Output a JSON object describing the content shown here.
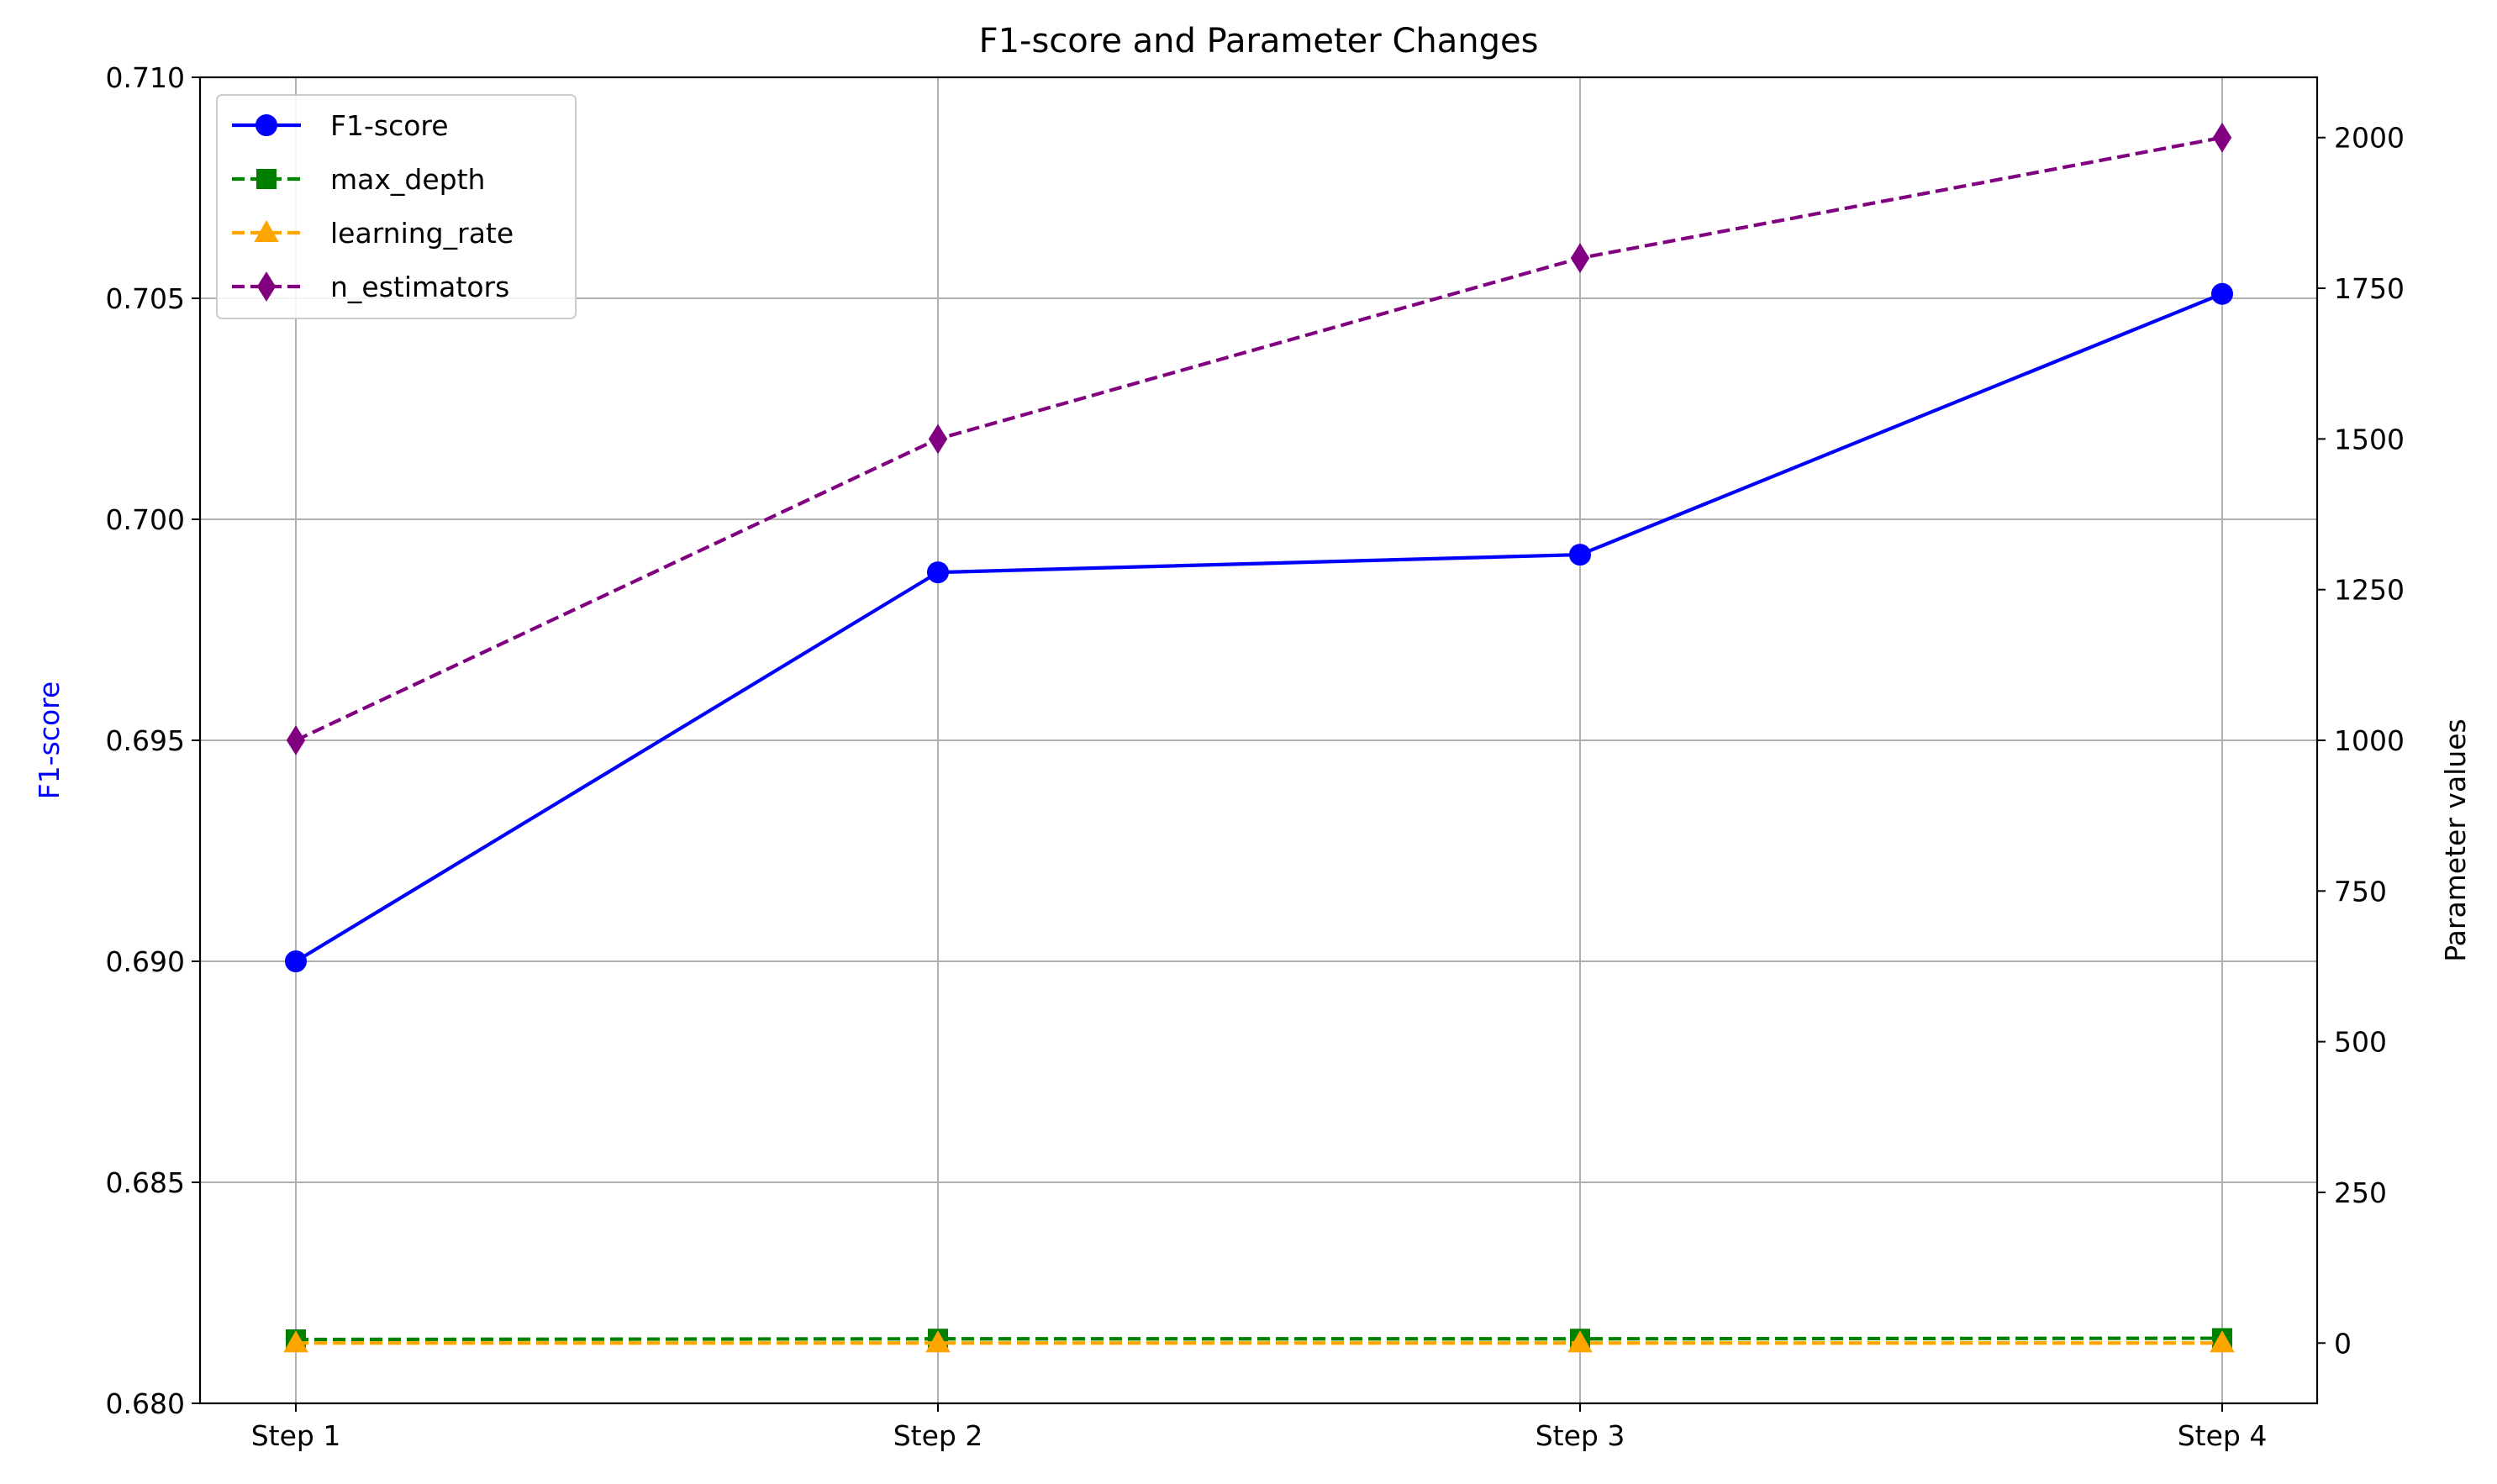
{
  "chart_data": {
    "type": "line",
    "title": "F1-score and Parameter Changes",
    "categories": [
      "Step 1",
      "Step 2",
      "Step 3",
      "Step 4"
    ],
    "y_left": {
      "label": "F1-score",
      "label_color": "#0000ff",
      "range": [
        0.68,
        0.71
      ],
      "ticks": [
        "0.680",
        "0.685",
        "0.690",
        "0.695",
        "0.700",
        "0.705",
        "0.710"
      ]
    },
    "y_right": {
      "label": "Parameter values",
      "range": [
        -100,
        2100
      ],
      "ticks": [
        "0",
        "250",
        "500",
        "750",
        "1000",
        "1250",
        "1500",
        "1750",
        "2000"
      ]
    },
    "grid": true,
    "legend_position": "top-left",
    "series": [
      {
        "name": "F1-score",
        "axis": "left",
        "values": [
          0.69,
          0.6988,
          0.6992,
          0.7051
        ],
        "color": "#0000ff",
        "dash": "solid",
        "marker": "circle"
      },
      {
        "name": "max_depth",
        "axis": "right",
        "values": [
          6,
          7,
          7,
          8
        ],
        "color": "#008000",
        "dash": "dashed",
        "marker": "square"
      },
      {
        "name": "learning_rate",
        "axis": "right",
        "values": [
          0.05,
          0.03,
          0.02,
          0.01
        ],
        "color": "#ffa500",
        "dash": "dashed",
        "marker": "triangle"
      },
      {
        "name": "n_estimators",
        "axis": "right",
        "values": [
          1000,
          1500,
          1800,
          2000
        ],
        "color": "#800080",
        "dash": "dashed",
        "marker": "diamond"
      }
    ]
  }
}
